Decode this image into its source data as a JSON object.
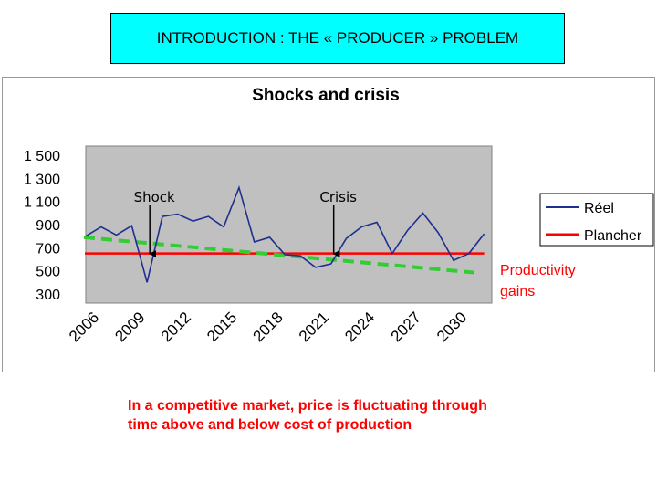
{
  "header": {
    "title": "INTRODUCTION : THE « PRODUCER » PROBLEM"
  },
  "chart_data": {
    "type": "line",
    "title": "Shocks and crisis",
    "xlabel": "",
    "ylabel": "",
    "x_tick_labels": [
      "2006",
      "2009",
      "2012",
      "2015",
      "2018",
      "2021",
      "2024",
      "2027",
      "2030"
    ],
    "y_tick_labels": [
      "1 500",
      "1 300",
      "1 100",
      "900",
      "700",
      "500",
      "300"
    ],
    "ylim": [
      300,
      1500
    ],
    "xlim": [
      2006,
      2032.5
    ],
    "grid": false,
    "legend": "right",
    "series": [
      {
        "name": "Réel",
        "color": "#1f2f8f",
        "x": [
          2006,
          2007,
          2008,
          2009,
          2010,
          2011,
          2012,
          2013,
          2014,
          2015,
          2016,
          2017,
          2018,
          2019,
          2020,
          2021,
          2022,
          2023,
          2024,
          2025,
          2026,
          2027,
          2028,
          2029,
          2030,
          2031,
          2032
        ],
        "values": [
          800,
          880,
          810,
          890,
          400,
          970,
          990,
          930,
          970,
          880,
          1220,
          750,
          790,
          640,
          630,
          530,
          560,
          780,
          880,
          920,
          650,
          850,
          1000,
          830,
          590,
          650,
          820
        ]
      },
      {
        "name": "Plancher",
        "color": "#ff0000",
        "x": [
          2006,
          2032
        ],
        "values": [
          650,
          650
        ]
      }
    ],
    "trend": {
      "color": "#33cc33",
      "x": [
        2006,
        2031
      ],
      "values": [
        790,
        485
      ]
    },
    "annotations": [
      {
        "label": "Shock",
        "x": 2010
      },
      {
        "label": "Crisis",
        "x": 2022
      }
    ],
    "trend_label": [
      "Productivity",
      "gains"
    ],
    "colors": {
      "plot_background": "#c0c0c0",
      "trend": "#33cc33",
      "trend_label": "#ff0000"
    }
  },
  "caption": {
    "line1": "In a competitive market, price is fluctuating through",
    "line2": "time above and below cost of production"
  }
}
